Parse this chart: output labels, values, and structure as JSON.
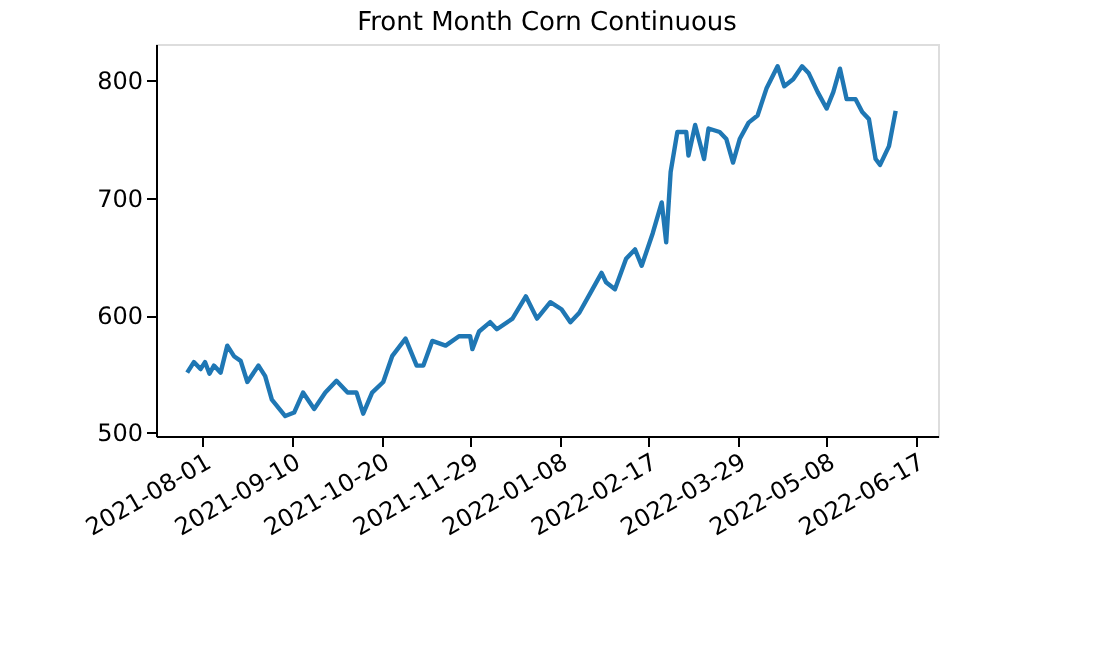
{
  "chart_data": {
    "type": "line",
    "title": "Front Month Corn Continuous",
    "x": [
      "2021-07-25",
      "2021-07-28",
      "2021-07-31",
      "2021-08-02",
      "2021-08-04",
      "2021-08-06",
      "2021-08-09",
      "2021-08-12",
      "2021-08-15",
      "2021-08-18",
      "2021-08-21",
      "2021-08-26",
      "2021-08-29",
      "2021-09-01",
      "2021-09-07",
      "2021-09-11",
      "2021-09-15",
      "2021-09-20",
      "2021-09-25",
      "2021-09-30",
      "2021-10-05",
      "2021-10-09",
      "2021-10-12",
      "2021-10-16",
      "2021-10-21",
      "2021-10-25",
      "2021-10-31",
      "2021-11-05",
      "2021-11-08",
      "2021-11-12",
      "2021-11-18",
      "2021-11-24",
      "2021-11-29",
      "2021-11-30",
      "2021-12-03",
      "2021-12-08",
      "2021-12-11",
      "2021-12-18",
      "2021-12-24",
      "2021-12-29",
      "2022-01-04",
      "2022-01-09",
      "2022-01-13",
      "2022-01-17",
      "2022-01-22",
      "2022-01-27",
      "2022-01-29",
      "2022-02-02",
      "2022-02-07",
      "2022-02-11",
      "2022-02-14",
      "2022-02-19",
      "2022-02-23",
      "2022-02-25",
      "2022-02-27",
      "2022-03-02",
      "2022-03-06",
      "2022-03-07",
      "2022-03-10",
      "2022-03-14",
      "2022-03-16",
      "2022-03-21",
      "2022-03-24",
      "2022-03-27",
      "2022-03-30",
      "2022-04-03",
      "2022-04-07",
      "2022-04-11",
      "2022-04-16",
      "2022-04-19",
      "2022-04-23",
      "2022-04-27",
      "2022-04-30",
      "2022-05-04",
      "2022-05-08",
      "2022-05-11",
      "2022-05-14",
      "2022-05-17",
      "2022-05-21",
      "2022-05-24",
      "2022-05-27",
      "2022-05-30",
      "2022-06-01",
      "2022-06-05",
      "2022-06-08"
    ],
    "series": [
      {
        "color": "#1f77b4",
        "values": [
          551,
          560,
          554,
          560,
          550,
          557,
          551,
          574,
          565,
          561,
          543,
          557,
          548,
          528,
          514,
          517,
          534,
          520,
          534,
          544,
          534,
          534,
          516,
          534,
          543,
          565,
          580,
          557,
          557,
          578,
          574,
          582,
          582,
          571,
          586,
          594,
          588,
          597,
          616,
          597,
          611,
          605,
          594,
          602,
          619,
          636,
          628,
          622,
          648,
          656,
          642,
          670,
          696,
          662,
          722,
          756,
          756,
          736,
          762,
          733,
          759,
          756,
          750,
          730,
          750,
          764,
          770,
          793,
          812,
          795,
          801,
          812,
          806,
          790,
          776,
          790,
          810,
          784,
          784,
          773,
          767,
          733,
          728,
          744,
          774
        ]
      }
    ],
    "xlim": [
      "2021-07-11",
      "2022-06-27"
    ],
    "xticks": [
      "2021-08-01",
      "2021-09-10",
      "2021-10-20",
      "2021-11-29",
      "2022-01-08",
      "2022-02-17",
      "2022-03-29",
      "2022-05-08",
      "2022-06-17"
    ],
    "ylim": [
      497,
      831
    ],
    "yticks": [
      500,
      600,
      700,
      800
    ],
    "grid": false,
    "legend": false,
    "line_style": "solid",
    "marker": "none"
  }
}
